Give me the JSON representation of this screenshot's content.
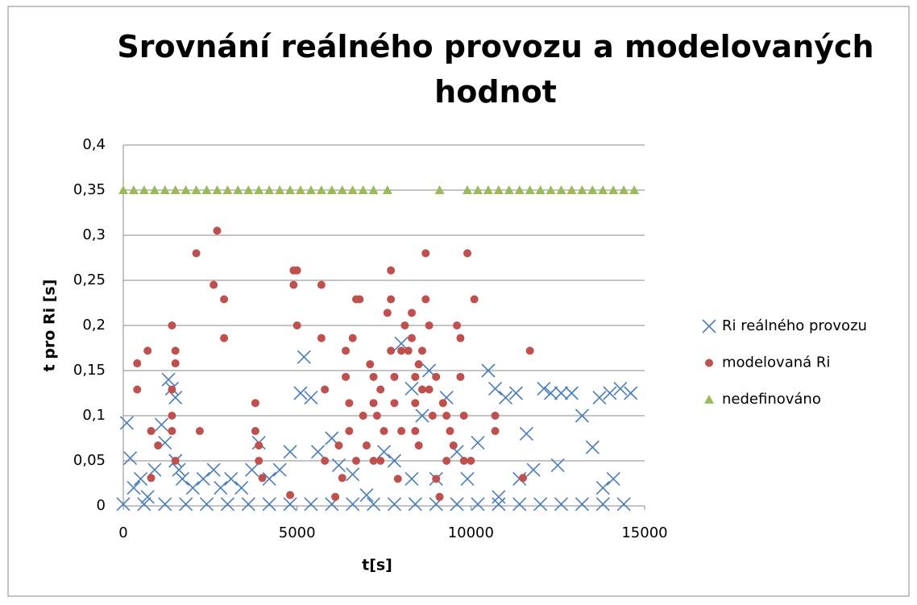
{
  "chart_data": {
    "type": "scatter",
    "title": "Srovnání reálného provozu a modelovaných hodnot",
    "x_label": "t[s]",
    "y_label": "t pro Ri [s]",
    "xlim": [
      0,
      15000
    ],
    "xticks": [
      0,
      5000,
      10000,
      15000
    ],
    "ylim": [
      0,
      0.4
    ],
    "yticks": [
      0,
      {
        "value": 0.05,
        "label": "0,05"
      },
      {
        "value": 0.1,
        "label": "0,1"
      },
      {
        "value": 0.15,
        "label": "0,15"
      },
      {
        "value": 0.2,
        "label": "0,2"
      },
      {
        "value": 0.25,
        "label": "0,25"
      },
      {
        "value": 0.3,
        "label": "0,3"
      },
      {
        "value": 0.35,
        "label": "0,35"
      },
      {
        "value": 0.4,
        "label": "0,4"
      }
    ],
    "grid": true,
    "legend": "right",
    "series": [
      {
        "name": "Ri reálného provozu",
        "color": "#4a7ebb",
        "marker": "x",
        "x": [
          100,
          200,
          300,
          500,
          700,
          900,
          1100,
          1200,
          1300,
          1400,
          1500,
          1500,
          1600,
          1700,
          2000,
          2300,
          2600,
          2800,
          3100,
          3400,
          3700,
          3900,
          4200,
          4500,
          4800,
          5200,
          5100,
          5400,
          5600,
          6000,
          6200,
          6600,
          7000,
          7500,
          8000,
          8300,
          8600,
          8800,
          9300,
          9600,
          9900,
          10200,
          10500,
          10700,
          11000,
          11300,
          11600,
          11800,
          12100,
          12300,
          12600,
          12900,
          13200,
          13500,
          13700,
          14000,
          14300,
          14600,
          14100,
          13800,
          12500,
          11400,
          10800,
          7800,
          8300,
          9000,
          0,
          600,
          1200,
          1800,
          2400,
          3000,
          3600,
          4200,
          4800,
          5400,
          6000,
          6600,
          7200,
          7800,
          8400,
          9000,
          9600,
          10200,
          10800,
          11400,
          12000,
          12600,
          13200,
          13800,
          14400
        ],
        "values": [
          0.092,
          0.053,
          0.02,
          0.03,
          0.01,
          0.04,
          0.09,
          0.07,
          0.14,
          0.13,
          0.12,
          0.05,
          0.04,
          0.03,
          0.02,
          0.03,
          0.04,
          0.02,
          0.03,
          0.02,
          0.04,
          0.07,
          0.03,
          0.04,
          0.06,
          0.165,
          0.125,
          0.12,
          0.06,
          0.075,
          0.045,
          0.035,
          0.012,
          0.06,
          0.18,
          0.13,
          0.1,
          0.15,
          0.12,
          0.06,
          0.03,
          0.07,
          0.15,
          0.13,
          0.12,
          0.125,
          0.08,
          0.04,
          0.13,
          0.125,
          0.125,
          0.125,
          0.1,
          0.065,
          0.12,
          0.125,
          0.13,
          0.125,
          0.03,
          0.02,
          0.045,
          0.03,
          0.01,
          0.05,
          0.03,
          0.03,
          0.002,
          0.002,
          0.002,
          0.002,
          0.002,
          0.002,
          0.002,
          0.002,
          0.002,
          0.002,
          0.002,
          0.002,
          0.002,
          0.002,
          0.002,
          0.002,
          0.002,
          0.002,
          0.002,
          0.002,
          0.002,
          0.002,
          0.002,
          0.002,
          0.002
        ]
      },
      {
        "name": "modelovaná Ri",
        "color": "#c0504d",
        "marker": "circle",
        "x": [
          400,
          400,
          700,
          800,
          800,
          1000,
          1400,
          1500,
          1500,
          1400,
          1400,
          1400,
          1500,
          2100,
          2200,
          2700,
          2600,
          2900,
          2900,
          3800,
          3800,
          3900,
          3900,
          4000,
          4900,
          5000,
          4900,
          5000,
          4800,
          5700,
          5700,
          5800,
          5800,
          6100,
          6200,
          6300,
          6400,
          6400,
          6500,
          6500,
          6600,
          6700,
          6800,
          6700,
          6900,
          7000,
          7100,
          7200,
          7200,
          7200,
          7300,
          7400,
          7400,
          7500,
          7600,
          7700,
          7700,
          7700,
          7800,
          7800,
          7900,
          8000,
          8000,
          8100,
          8200,
          8300,
          8300,
          8400,
          8400,
          8400,
          8500,
          8500,
          8600,
          8600,
          8700,
          8700,
          8800,
          8800,
          8900,
          9000,
          9000,
          9100,
          9200,
          9300,
          9300,
          9400,
          9500,
          9600,
          9700,
          9700,
          9800,
          9800,
          9900,
          10000,
          10100,
          10700,
          10700,
          11500,
          11700
        ],
        "values": [
          0.158,
          0.129,
          0.172,
          0.083,
          0.031,
          0.067,
          0.2,
          0.172,
          0.158,
          0.129,
          0.1,
          0.083,
          0.05,
          0.28,
          0.083,
          0.305,
          0.245,
          0.229,
          0.186,
          0.114,
          0.083,
          0.067,
          0.05,
          0.031,
          0.261,
          0.261,
          0.245,
          0.2,
          0.012,
          0.245,
          0.186,
          0.129,
          0.05,
          0.01,
          0.067,
          0.031,
          0.172,
          0.143,
          0.114,
          0.083,
          0.186,
          0.229,
          0.229,
          0.05,
          0.1,
          0.067,
          0.157,
          0.143,
          0.114,
          0.05,
          0.1,
          0.129,
          0.05,
          0.083,
          0.214,
          0.229,
          0.261,
          0.172,
          0.143,
          0.114,
          0.03,
          0.172,
          0.083,
          0.2,
          0.172,
          0.214,
          0.186,
          0.143,
          0.114,
          0.083,
          0.067,
          0.157,
          0.129,
          0.172,
          0.28,
          0.229,
          0.2,
          0.129,
          0.1,
          0.143,
          0.03,
          0.01,
          0.114,
          0.05,
          0.1,
          0.083,
          0.067,
          0.2,
          0.186,
          0.143,
          0.1,
          0.05,
          0.28,
          0.05,
          0.229,
          0.1,
          0.083,
          0.031,
          0.172
        ]
      },
      {
        "name": "nedefinováno",
        "color": "#9bbb59",
        "marker": "triangle",
        "x": [
          0,
          300,
          600,
          900,
          1200,
          1500,
          1800,
          2100,
          2400,
          2700,
          3000,
          3300,
          3600,
          3900,
          4200,
          4500,
          4800,
          5100,
          5400,
          5700,
          6000,
          6300,
          6600,
          6900,
          7200,
          7600,
          9100,
          9900,
          10200,
          10500,
          10800,
          11100,
          11400,
          11700,
          12000,
          12300,
          12600,
          12900,
          13200,
          13500,
          13800,
          14100,
          14400,
          14700
        ],
        "values": [
          0.35,
          0.35,
          0.35,
          0.35,
          0.35,
          0.35,
          0.35,
          0.35,
          0.35,
          0.35,
          0.35,
          0.35,
          0.35,
          0.35,
          0.35,
          0.35,
          0.35,
          0.35,
          0.35,
          0.35,
          0.35,
          0.35,
          0.35,
          0.35,
          0.35,
          0.35,
          0.35,
          0.35,
          0.35,
          0.35,
          0.35,
          0.35,
          0.35,
          0.35,
          0.35,
          0.35,
          0.35,
          0.35,
          0.35,
          0.35,
          0.35,
          0.35,
          0.35,
          0.35
        ]
      }
    ]
  }
}
